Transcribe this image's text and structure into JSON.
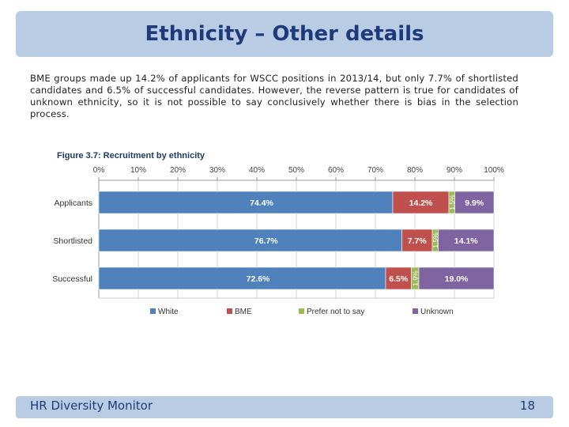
{
  "slide": {
    "title": "Ethnicity – Other details",
    "paragraph": "BME groups made up 14.2% of applicants for WSCC positions in 2013/14, but only 7.7% of shortlisted candidates and 6.5% of successful candidates. However, the reverse pattern is true for candidates of unknown ethnicity, so it is not possible to say conclusively whether there is bias in the selection process.",
    "footer_left": "HR Diversity Monitor",
    "page_number": "18"
  },
  "colors": {
    "title_bar": "#b8cce4",
    "title_text": "#1f3a7a",
    "White": "#4f81bd",
    "BME": "#c0504d",
    "Prefer not to say": "#9bbb59",
    "Unknown": "#8064a2"
  },
  "chart_data": {
    "type": "bar",
    "orientation": "horizontal",
    "stacked": true,
    "title": "Figure 3.7: Recruitment by ethnicity",
    "categories": [
      "Applicants",
      "Shortlisted",
      "Successful"
    ],
    "series": [
      {
        "name": "White",
        "values": [
          74.4,
          76.7,
          72.6
        ],
        "labels": [
          "74.4%",
          "76.7%",
          "72.6%"
        ]
      },
      {
        "name": "BME",
        "values": [
          14.2,
          7.7,
          6.5
        ],
        "labels": [
          "14.2%",
          "7.7%",
          "6.5%"
        ]
      },
      {
        "name": "Prefer not to say",
        "values": [
          1.5,
          1.5,
          1.9
        ],
        "labels": [
          "1.5%",
          "1.5%",
          "1.9%"
        ]
      },
      {
        "name": "Unknown",
        "values": [
          9.9,
          14.1,
          19.0
        ],
        "labels": [
          "9.9%",
          "14.1%",
          "19.0%"
        ]
      }
    ],
    "x_ticks": [
      "0%",
      "10%",
      "20%",
      "30%",
      "40%",
      "50%",
      "60%",
      "70%",
      "80%",
      "90%",
      "100%"
    ],
    "xlim": [
      0,
      100
    ],
    "x_axis_position": "top",
    "grid": true,
    "legend_position": "bottom"
  }
}
